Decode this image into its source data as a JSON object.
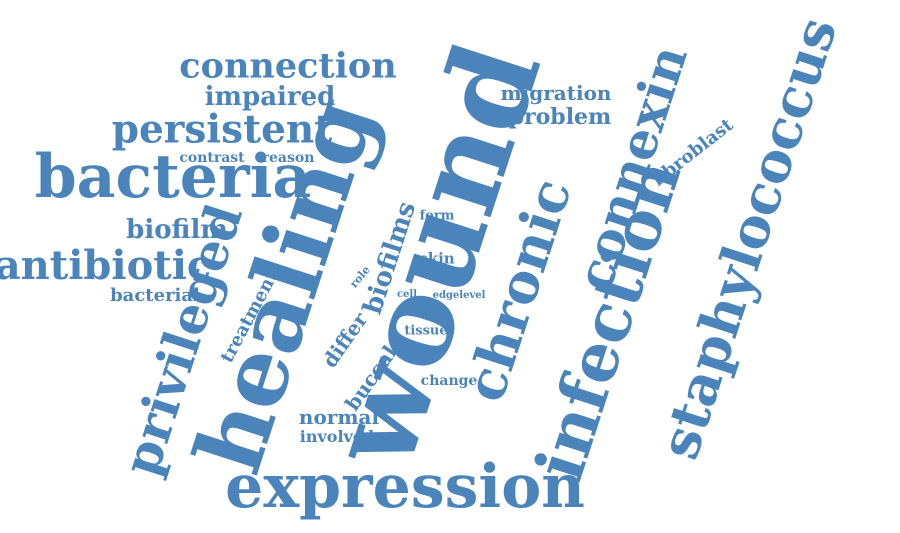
{
  "color": "#4a84bb",
  "words": [
    {
      "id": "wound",
      "text": "wound"
    },
    {
      "id": "healing",
      "text": "healing"
    },
    {
      "id": "expression",
      "text": "expression"
    },
    {
      "id": "staphylococcus",
      "text": "staphylococcus"
    },
    {
      "id": "infection",
      "text": "infection"
    },
    {
      "id": "connexin",
      "text": "connexin"
    },
    {
      "id": "chronic",
      "text": "chronic"
    },
    {
      "id": "bacteria",
      "text": "bacteria"
    },
    {
      "id": "privileged",
      "text": "privileged"
    },
    {
      "id": "antibiotic",
      "text": "antibiotic"
    },
    {
      "id": "persistent",
      "text": "persistent"
    },
    {
      "id": "connection",
      "text": "connection"
    },
    {
      "id": "impaired",
      "text": "impaired"
    },
    {
      "id": "biofilm",
      "text": "biofilm"
    },
    {
      "id": "biofilms",
      "text": "biofilms"
    },
    {
      "id": "migration",
      "text": "migration"
    },
    {
      "id": "problem",
      "text": "problem"
    },
    {
      "id": "fibroblast",
      "text": "fibroblast"
    },
    {
      "id": "treatment",
      "text": "treatment"
    },
    {
      "id": "bacterial",
      "text": "bacterial"
    },
    {
      "id": "contrast",
      "text": "contrast"
    },
    {
      "id": "reason",
      "text": "reason"
    },
    {
      "id": "differ",
      "text": "differ"
    },
    {
      "id": "buccal",
      "text": "buccal"
    },
    {
      "id": "normal",
      "text": "normal"
    },
    {
      "id": "involved",
      "text": "involved"
    },
    {
      "id": "change",
      "text": "change"
    },
    {
      "id": "tissue",
      "text": "tissue"
    },
    {
      "id": "skin",
      "text": "skin"
    },
    {
      "id": "form",
      "text": "form"
    },
    {
      "id": "role",
      "text": "role"
    },
    {
      "id": "cell",
      "text": "cell"
    },
    {
      "id": "edgelevel",
      "text": "edgelevel"
    }
  ]
}
